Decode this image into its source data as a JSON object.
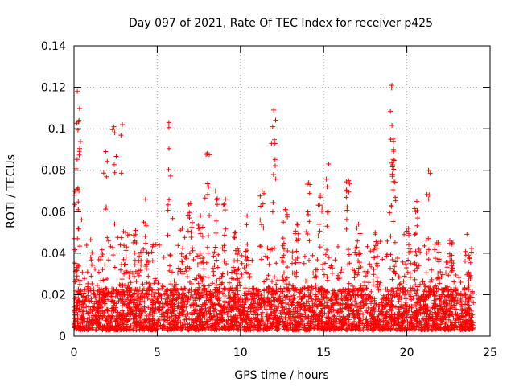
{
  "chart_data": {
    "type": "scatter",
    "title": "Day 097 of 2021, Rate Of TEC Index for receiver p425",
    "xlabel": "GPS time / hours",
    "ylabel": "ROTI / TECUs",
    "xlim": [
      0,
      25
    ],
    "ylim": [
      0,
      0.14
    ],
    "xticks": [
      "0",
      "5",
      "10",
      "15",
      "20",
      "25"
    ],
    "yticks": [
      "0",
      "0.02",
      "0.04",
      "0.06",
      "0.08",
      "0.1",
      "0.12",
      "0.14"
    ],
    "grid": true,
    "marker": "+",
    "color": "#ff0000",
    "x_data_range": [
      0,
      24
    ],
    "baseline_roti": 0.012,
    "peaks": [
      {
        "x": 0.2,
        "y": 0.118
      },
      {
        "x": 0.3,
        "y": 0.104
      },
      {
        "x": 0.1,
        "y": 0.07
      },
      {
        "x": 1.9,
        "y": 0.089
      },
      {
        "x": 2.4,
        "y": 0.101
      },
      {
        "x": 2.9,
        "y": 0.102
      },
      {
        "x": 3.1,
        "y": 0.05
      },
      {
        "x": 3.7,
        "y": 0.051
      },
      {
        "x": 4.3,
        "y": 0.066
      },
      {
        "x": 5.7,
        "y": 0.103
      },
      {
        "x": 6.5,
        "y": 0.052
      },
      {
        "x": 7.0,
        "y": 0.064
      },
      {
        "x": 7.6,
        "y": 0.058
      },
      {
        "x": 8.0,
        "y": 0.088
      },
      {
        "x": 8.5,
        "y": 0.07
      },
      {
        "x": 9.1,
        "y": 0.066
      },
      {
        "x": 9.7,
        "y": 0.05
      },
      {
        "x": 10.4,
        "y": 0.058
      },
      {
        "x": 11.3,
        "y": 0.07
      },
      {
        "x": 12.0,
        "y": 0.109
      },
      {
        "x": 12.7,
        "y": 0.061
      },
      {
        "x": 13.4,
        "y": 0.054
      },
      {
        "x": 14.1,
        "y": 0.074
      },
      {
        "x": 14.8,
        "y": 0.068
      },
      {
        "x": 15.3,
        "y": 0.083
      },
      {
        "x": 16.5,
        "y": 0.075
      },
      {
        "x": 17.1,
        "y": 0.054
      },
      {
        "x": 18.1,
        "y": 0.05
      },
      {
        "x": 19.1,
        "y": 0.121
      },
      {
        "x": 19.2,
        "y": 0.09
      },
      {
        "x": 20.1,
        "y": 0.052
      },
      {
        "x": 20.6,
        "y": 0.065
      },
      {
        "x": 21.3,
        "y": 0.08
      },
      {
        "x": 21.8,
        "y": 0.045
      },
      {
        "x": 22.7,
        "y": 0.045
      },
      {
        "x": 23.7,
        "y": 0.039
      }
    ]
  }
}
